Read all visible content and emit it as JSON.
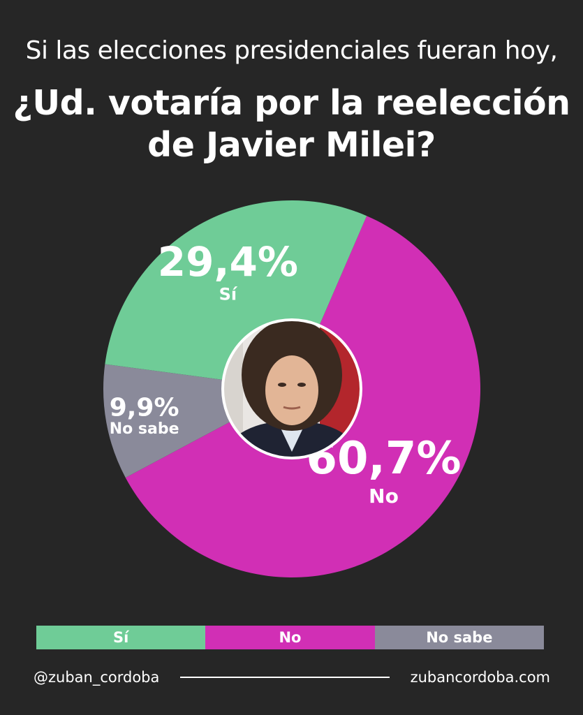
{
  "header": {
    "subtitle": "Si las elecciones presidenciales fueran hoy,",
    "title_line1": "¿Ud. votaría por la reelección",
    "title_line2": "de Javier Milei?"
  },
  "chart_data": {
    "type": "pie",
    "categories": [
      "No",
      "No sabe",
      "Sí"
    ],
    "values": [
      60.7,
      9.9,
      29.4
    ],
    "value_labels": [
      "60,7%",
      "9,9%",
      "29,4%"
    ],
    "colors": [
      "#d12fb5",
      "#8a8a9a",
      "#6fcc97"
    ],
    "style": "donut",
    "center_image": "portrait-photo"
  },
  "legend": {
    "items": [
      {
        "label": "Sí",
        "color": "#6fcc97"
      },
      {
        "label": "No",
        "color": "#d12fb5"
      },
      {
        "label": "No sabe",
        "color": "#8a8a9a"
      }
    ]
  },
  "footer": {
    "handle": "@zuban_cordoba",
    "website": "zubancordoba.com"
  }
}
